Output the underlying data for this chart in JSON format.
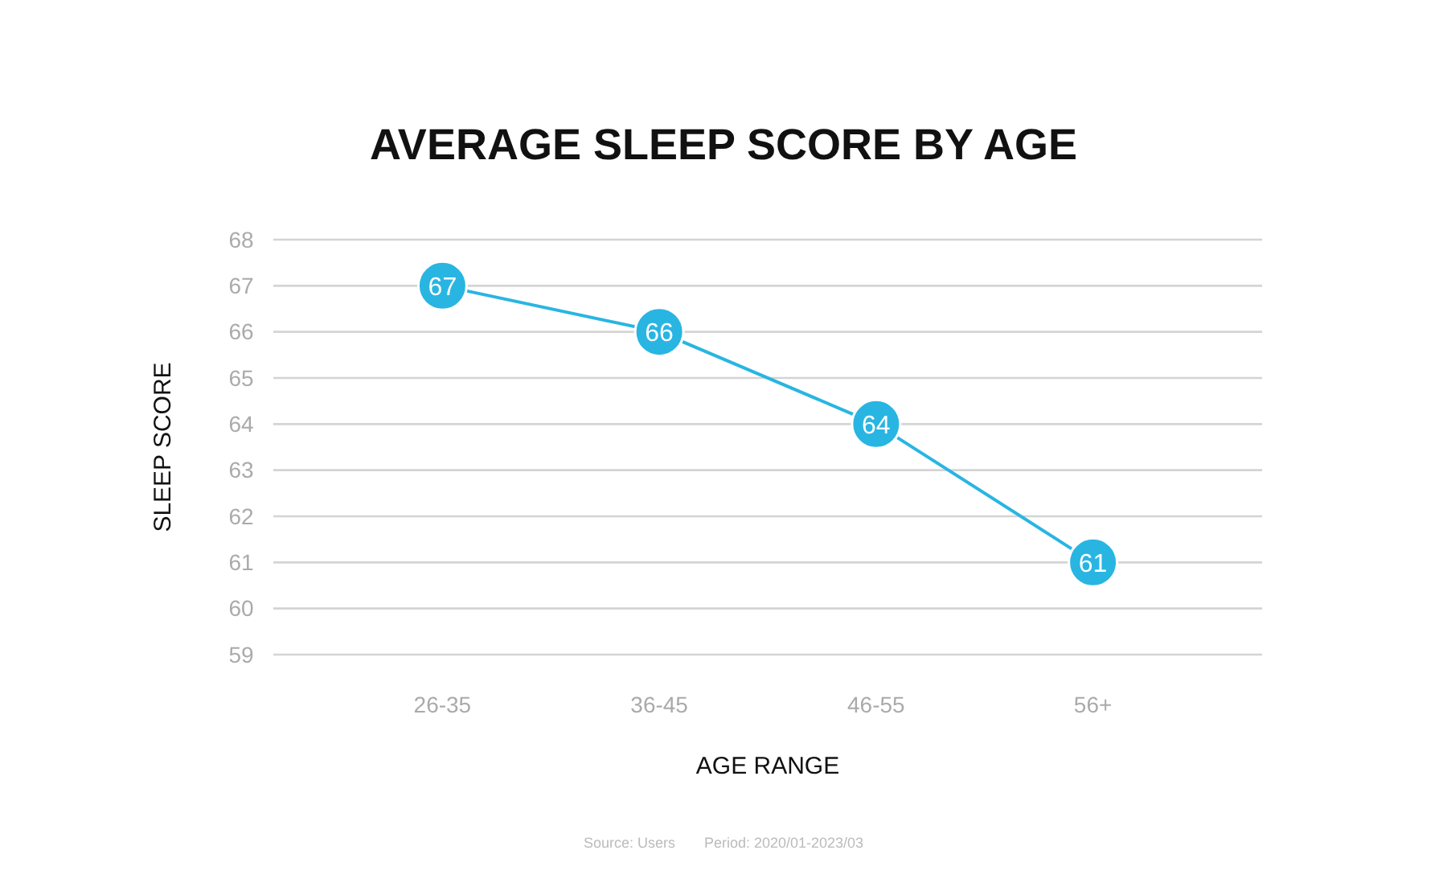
{
  "chart_data": {
    "type": "line",
    "title": "AVERAGE SLEEP SCORE BY AGE",
    "xlabel": "AGE RANGE",
    "ylabel": "SLEEP SCORE",
    "categories": [
      "26-35",
      "36-45",
      "46-55",
      "56+"
    ],
    "series": [
      {
        "color": "#29b5e2",
        "values": [
          67,
          66,
          64,
          61
        ]
      }
    ],
    "ylim": [
      59,
      68
    ],
    "yticks": [
      59,
      60,
      61,
      62,
      63,
      64,
      65,
      66,
      67,
      68
    ],
    "grid": "y",
    "marker": "circle",
    "data_labels": true,
    "line_style": "solid",
    "annotations": [
      "Source: Users",
      "Period: 2020/01-2023/03"
    ]
  }
}
